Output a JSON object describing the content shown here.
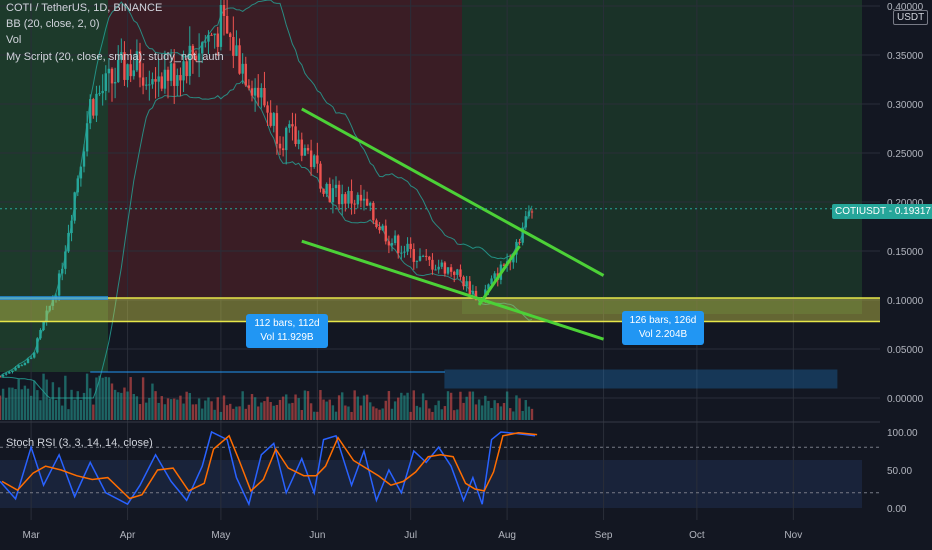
{
  "header": {
    "symbol_line": "COTI / TetherUS, 1D, BINANCE",
    "bb_line": "BB (20, close, 2, 0)",
    "vol_line": "Vol",
    "script_line": "My Script (20, close, smma): study_not_auth",
    "stoch_line": "Stoch RSI (3, 3, 14, 14, close)"
  },
  "price_axis": {
    "unit": "USDT",
    "ticks": [
      "0.40000",
      "0.35000",
      "0.30000",
      "0.25000",
      "0.20000",
      "0.15000",
      "0.10000",
      "0.05000",
      "0.00000"
    ],
    "current_label": "COTIUSDT",
    "current_value": "0.19317"
  },
  "stoch_axis": {
    "ticks": [
      "100.00",
      "50.00",
      "0.00"
    ]
  },
  "time_axis": {
    "labels": [
      "Mar",
      "Apr",
      "May",
      "Jun",
      "Jul",
      "Aug",
      "Sep",
      "Oct",
      "Nov"
    ]
  },
  "measures": [
    {
      "bars": "112 bars, 112d",
      "vol": "Vol 11.929B"
    },
    {
      "bars": "126 bars, 126d",
      "vol": "Vol 2.204B"
    }
  ],
  "colors": {
    "background": "#131722",
    "up": "#26a69a",
    "down": "#ef5350",
    "trendline": "#4cd137",
    "support_zone": "#c8c84a",
    "measure": "#2196f3",
    "stoch_k": "#2962ff",
    "stoch_d": "#ff6d00",
    "green_region": "#1d3a2b",
    "red_region": "#3a1d25"
  },
  "chart_data": {
    "type": "candlestick",
    "x_range": [
      "2020-02-20",
      "2020-11-25"
    ],
    "ylim": [
      0,
      0.4
    ],
    "price_series_approx": [
      [
        "2020-02-20",
        0.022
      ],
      [
        "2020-03-01",
        0.04
      ],
      [
        "2020-03-10",
        0.12
      ],
      [
        "2020-03-20",
        0.3
      ],
      [
        "2020-04-01",
        0.34
      ],
      [
        "2020-04-15",
        0.33
      ],
      [
        "2020-05-01",
        0.38
      ],
      [
        "2020-05-10",
        0.33
      ],
      [
        "2020-05-20",
        0.27
      ],
      [
        "2020-05-27",
        0.26
      ],
      [
        "2020-06-05",
        0.21
      ],
      [
        "2020-06-15",
        0.2
      ],
      [
        "2020-06-25",
        0.16
      ],
      [
        "2020-07-05",
        0.14
      ],
      [
        "2020-07-15",
        0.13
      ],
      [
        "2020-07-23",
        0.1
      ],
      [
        "2020-08-01",
        0.14
      ],
      [
        "2020-08-09",
        0.193
      ]
    ],
    "current_price": 0.19317,
    "trendlines": [
      {
        "name": "channel-top",
        "from": [
          "2020-05-27",
          0.295
        ],
        "to": [
          "2020-09-01",
          0.125
        ]
      },
      {
        "name": "channel-bottom",
        "from": [
          "2020-05-27",
          0.16
        ],
        "to": [
          "2020-09-01",
          0.06
        ]
      },
      {
        "name": "breakout",
        "from": [
          "2020-07-23",
          0.095
        ],
        "to": [
          "2020-08-05",
          0.155
        ]
      }
    ],
    "support_zone": [
      0.078,
      0.102
    ],
    "stoch_ylim": [
      0,
      100
    ],
    "stoch_levels": [
      80,
      20
    ],
    "stoch_k": [
      [
        "2020-02-20",
        35
      ],
      [
        "2020-02-25",
        12
      ],
      [
        "2020-03-01",
        80
      ],
      [
        "2020-03-05",
        30
      ],
      [
        "2020-03-10",
        70
      ],
      [
        "2020-03-15",
        15
      ],
      [
        "2020-03-20",
        60
      ],
      [
        "2020-03-25",
        20
      ],
      [
        "2020-04-01",
        5
      ],
      [
        "2020-04-05",
        30
      ],
      [
        "2020-04-10",
        70
      ],
      [
        "2020-04-15",
        35
      ],
      [
        "2020-04-20",
        10
      ],
      [
        "2020-04-25",
        55
      ],
      [
        "2020-04-28",
        100
      ],
      [
        "2020-05-03",
        90
      ],
      [
        "2020-05-06",
        40
      ],
      [
        "2020-05-10",
        5
      ],
      [
        "2020-05-14",
        70
      ],
      [
        "2020-05-18",
        85
      ],
      [
        "2020-05-22",
        20
      ],
      [
        "2020-05-27",
        65
      ],
      [
        "2020-05-31",
        20
      ],
      [
        "2020-06-03",
        90
      ],
      [
        "2020-06-07",
        95
      ],
      [
        "2020-06-12",
        30
      ],
      [
        "2020-06-16",
        75
      ],
      [
        "2020-06-20",
        10
      ],
      [
        "2020-06-24",
        50
      ],
      [
        "2020-06-28",
        20
      ],
      [
        "2020-07-02",
        75
      ],
      [
        "2020-07-06",
        60
      ],
      [
        "2020-07-10",
        80
      ],
      [
        "2020-07-14",
        55
      ],
      [
        "2020-07-18",
        10
      ],
      [
        "2020-07-21",
        40
      ],
      [
        "2020-07-24",
        5
      ],
      [
        "2020-07-27",
        90
      ],
      [
        "2020-07-30",
        100
      ],
      [
        "2020-08-04",
        98
      ],
      [
        "2020-08-10",
        95
      ]
    ]
  }
}
